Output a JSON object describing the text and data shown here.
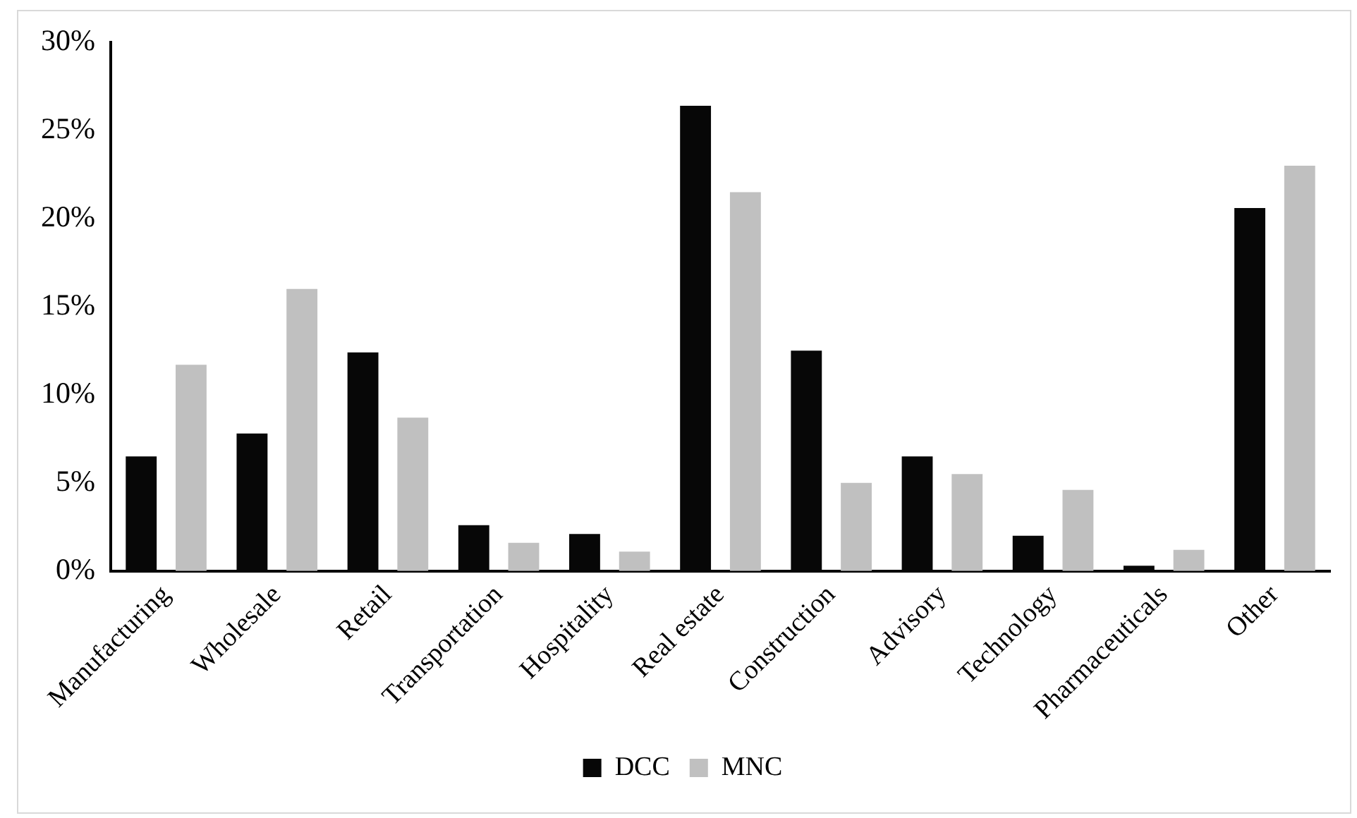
{
  "chart_data": {
    "type": "bar",
    "categories": [
      "Manufacturing",
      "Wholesale",
      "Retail",
      "Transportation",
      "Hospitality",
      "Real estate",
      "Construction",
      "Advisory",
      "Technology",
      "Pharmaceuticals",
      "Other"
    ],
    "series": [
      {
        "name": "DCC",
        "color": "#070707",
        "values": [
          6.5,
          7.8,
          12.4,
          2.6,
          2.1,
          26.4,
          12.5,
          6.5,
          2.0,
          0.3,
          20.6
        ]
      },
      {
        "name": "MNC",
        "color": "#c0c0c0",
        "values": [
          11.7,
          16.0,
          8.7,
          1.6,
          1.1,
          21.5,
          5.0,
          5.5,
          4.6,
          1.2,
          23.0
        ]
      }
    ],
    "ylim": [
      0,
      30
    ],
    "yticks": [
      {
        "value": 0,
        "label": "0%"
      },
      {
        "value": 5,
        "label": "5%"
      },
      {
        "value": 10,
        "label": "10%"
      },
      {
        "value": 15,
        "label": "15%"
      },
      {
        "value": 20,
        "label": "20%"
      },
      {
        "value": 25,
        "label": "25%"
      },
      {
        "value": 30,
        "label": "30%"
      }
    ],
    "grid": false,
    "legend": "bottom"
  }
}
